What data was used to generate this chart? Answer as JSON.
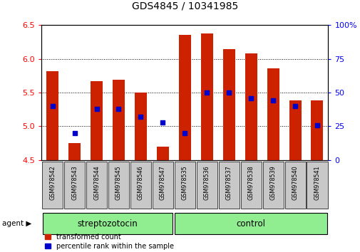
{
  "title": "GDS4845 / 10341985",
  "samples": [
    "GSM978542",
    "GSM978543",
    "GSM978544",
    "GSM978545",
    "GSM978546",
    "GSM978547",
    "GSM978535",
    "GSM978536",
    "GSM978537",
    "GSM978538",
    "GSM978539",
    "GSM978540",
    "GSM978541"
  ],
  "transformed_count": [
    5.82,
    4.75,
    5.67,
    5.69,
    5.5,
    4.7,
    6.36,
    6.38,
    6.15,
    6.08,
    5.86,
    5.39,
    5.39
  ],
  "pr_pct": [
    40,
    20,
    38,
    38,
    32,
    28,
    20,
    50,
    50,
    46,
    44,
    40,
    26
  ],
  "ylim_left": [
    4.5,
    6.5
  ],
  "ylim_right": [
    0,
    100
  ],
  "yticks_left": [
    4.5,
    5.0,
    5.5,
    6.0,
    6.5
  ],
  "yticks_right": [
    0,
    25,
    50,
    75,
    100
  ],
  "ytick_labels_right": [
    "0",
    "25",
    "50",
    "75",
    "100%"
  ],
  "groups": [
    {
      "label": "streptozotocin",
      "start": 0,
      "end": 6
    },
    {
      "label": "control",
      "start": 6,
      "end": 13
    }
  ],
  "group_color": "#90EE90",
  "bar_color": "#CC2200",
  "dot_color": "#0000CC",
  "background_color": "#FFFFFF",
  "plot_bg_color": "#FFFFFF",
  "tick_label_bg": "#C8C8C8",
  "title_fontsize": 10,
  "bar_width": 0.55,
  "dot_size": 18
}
